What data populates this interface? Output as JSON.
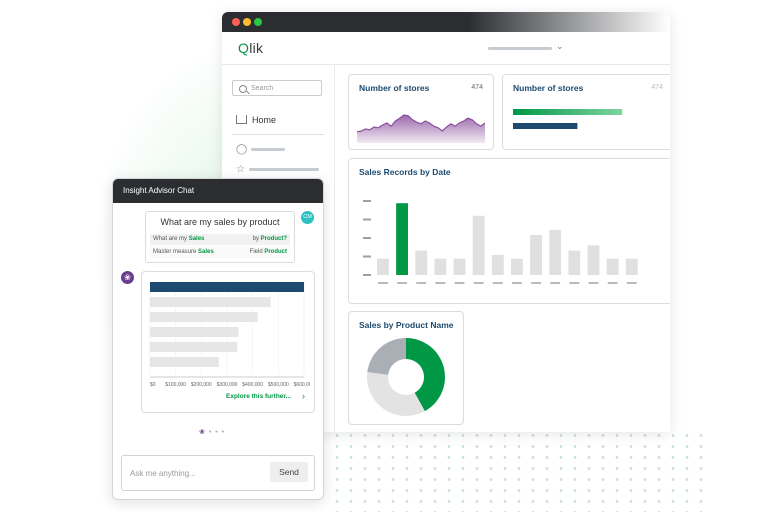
{
  "window": {
    "traffic_lights": [
      "#ff5f57",
      "#febc2e",
      "#28c840"
    ],
    "logo": {
      "q": "Q",
      "rest": "lik"
    }
  },
  "sidebar": {
    "search_placeholder": "Search",
    "home_label": "Home",
    "icons": [
      "check-circle-icon",
      "star-icon"
    ]
  },
  "cards": {
    "stores_line": {
      "title": "Number of stores",
      "value": "474",
      "color": "#8a4e9e"
    },
    "stores_bar": {
      "title": "Number of stores",
      "value": "474"
    },
    "sales_by_date": {
      "title": "Sales Records by Date"
    },
    "sales_by_product": {
      "title": "Sales by Product Name"
    }
  },
  "chat": {
    "title": "Insight Advisor Chat",
    "question": "What are my sales by product",
    "avatar_initials": "CM",
    "interpretation": {
      "row1_left_pre": "What are my ",
      "row1_left_term": "Sales",
      "row1_right_pre": "by ",
      "row1_right_term": "Product?",
      "row2_left_pre": "Master measure ",
      "row2_left_term": "Sales",
      "row2_right_pre": "Field ",
      "row2_right_term": "Product"
    },
    "explore_label": "Explore this further...",
    "input_placeholder": "Ask me anything...",
    "send_label": "Send"
  },
  "colors": {
    "green": "#009845",
    "navy": "#1d4a6e",
    "purple": "#8a4e9e",
    "gray": "#e0e0e0"
  },
  "chart_data": [
    {
      "type": "area",
      "title": "Number of stores",
      "x": [
        0,
        1,
        2,
        3,
        4,
        5,
        6,
        7,
        8,
        9,
        10,
        11,
        12,
        13,
        14,
        15,
        16,
        17,
        18,
        19,
        20,
        21,
        22,
        23,
        24,
        25,
        26,
        27,
        28,
        29,
        30
      ],
      "values": [
        0.28,
        0.3,
        0.35,
        0.33,
        0.4,
        0.38,
        0.45,
        0.5,
        0.42,
        0.55,
        0.62,
        0.7,
        0.68,
        0.58,
        0.52,
        0.48,
        0.55,
        0.5,
        0.42,
        0.38,
        0.3,
        0.4,
        0.48,
        0.42,
        0.5,
        0.55,
        0.62,
        0.58,
        0.48,
        0.42,
        0.5
      ],
      "ylim": [
        0,
        1
      ]
    },
    {
      "type": "bar",
      "title": "Number of stores",
      "series": [
        {
          "values": [
            0.78
          ]
        },
        {
          "values": [
            0.46
          ]
        }
      ],
      "colors": [
        "#009845",
        "#1d4a6e"
      ],
      "ylim": [
        0,
        1
      ]
    },
    {
      "type": "bar",
      "title": "Sales Records by Date",
      "categories": [
        "",
        "",
        "",
        "",
        "",
        "",
        "",
        "",
        "",
        "",
        "",
        "",
        "",
        ""
      ],
      "values": [
        0.22,
        0.97,
        0.33,
        0.22,
        0.22,
        0.8,
        0.27,
        0.22,
        0.54,
        0.61,
        0.33,
        0.4,
        0.22,
        0.22
      ],
      "highlight_index": 1,
      "ylim": [
        0,
        1
      ]
    },
    {
      "type": "pie",
      "title": "Sales by Product Name",
      "values": [
        0.42,
        0.35,
        0.23
      ],
      "colors": [
        "#009845",
        "#e3e3e3",
        "#a9afb4"
      ]
    },
    {
      "type": "bar",
      "orientation": "horizontal",
      "title": "",
      "categories": [
        "",
        "",
        "",
        "",
        "",
        ""
      ],
      "values": [
        600000,
        470000,
        420000,
        345000,
        340000,
        268000
      ],
      "highlight_index": 0,
      "xticks": [
        "$0",
        "$100,000",
        "$200,000",
        "$300,000",
        "$400,000",
        "$500,000",
        "$600,000"
      ],
      "xlim": [
        0,
        600000
      ]
    }
  ]
}
